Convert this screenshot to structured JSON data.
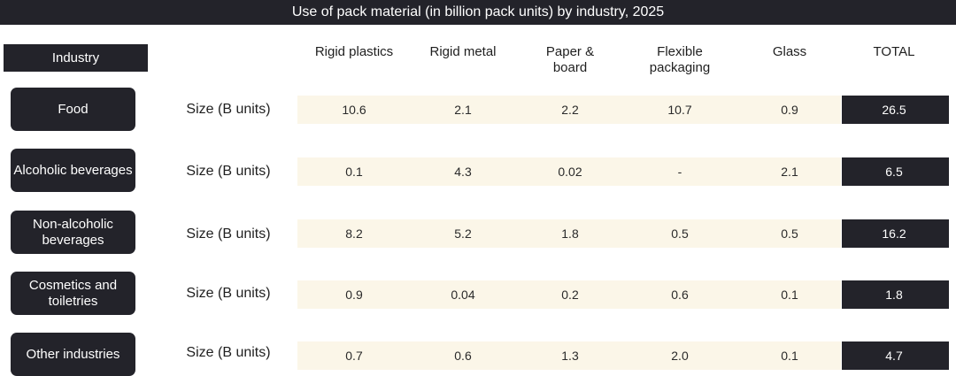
{
  "chart_data": {
    "type": "table",
    "title": "Use of pack material (in billion pack units) by industry, 2025",
    "row_header": "Industry",
    "metric_label": "Size (B units)",
    "columns": [
      "Rigid plastics",
      "Rigid metal",
      "Paper & board",
      "Flexible packaging",
      "Glass",
      "TOTAL"
    ],
    "rows": [
      {
        "industry": "Food",
        "values": [
          "10.6",
          "2.1",
          "2.2",
          "10.7",
          "0.9",
          "26.5"
        ]
      },
      {
        "industry": "Alcoholic beverages",
        "values": [
          "0.1",
          "4.3",
          "0.02",
          "-",
          "2.1",
          "6.5"
        ]
      },
      {
        "industry": "Non-alcoholic beverages",
        "values": [
          "8.2",
          "5.2",
          "1.8",
          "0.5",
          "0.5",
          "16.2"
        ]
      },
      {
        "industry": "Cosmetics and toiletries",
        "values": [
          "0.9",
          "0.04",
          "0.2",
          "0.6",
          "0.1",
          "1.8"
        ]
      },
      {
        "industry": "Other industries",
        "values": [
          "0.7",
          "0.6",
          "1.3",
          "2.0",
          "0.1",
          "4.7"
        ]
      }
    ]
  },
  "colors": {
    "dark": "#23232a",
    "band": "#fbf6e8",
    "text": "#1f1f1f"
  }
}
